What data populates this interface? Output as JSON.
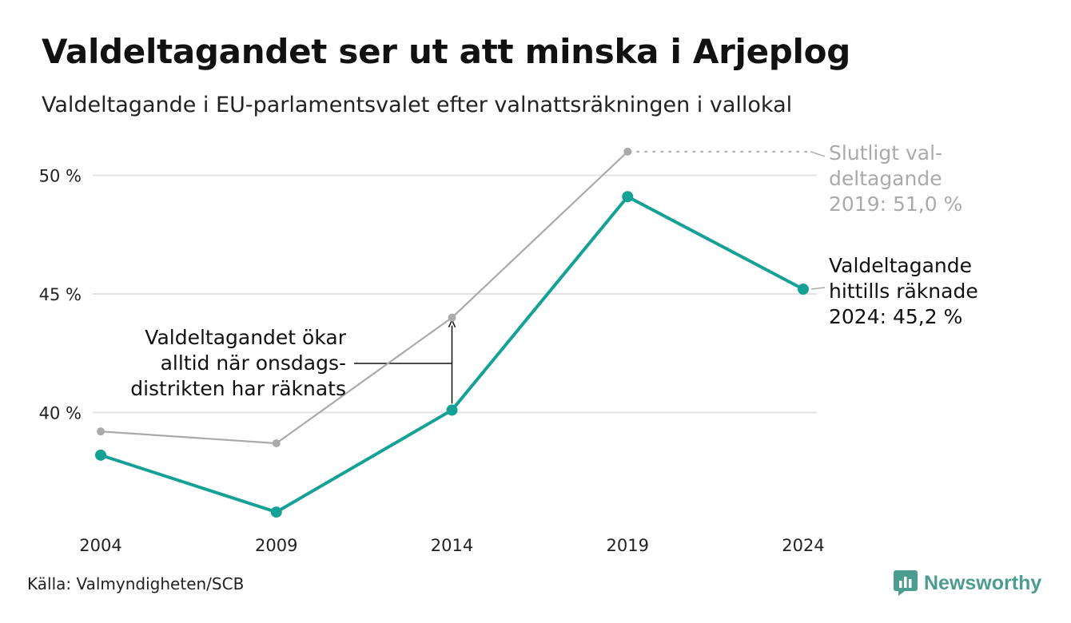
{
  "header": {
    "title": "Valdeltagandet ser ut att minska i Arjeplog",
    "subtitle": "Valdeltagande i EU-parlamentsvalet efter valnattsräkningen i vallokal"
  },
  "footer": {
    "source": "Källa: Valmyndigheten/SCB",
    "brand": "Newsworthy",
    "brand_icon": "newsworthy-logo-icon"
  },
  "chart_data": {
    "type": "line",
    "title": "Valdeltagandet ser ut att minska i Arjeplog",
    "subtitle": "Valdeltagande i EU-parlamentsvalet efter valnattsräkningen i vallokal",
    "x": [
      "2004",
      "2009",
      "2014",
      "2019",
      "2024"
    ],
    "ylim": [
      35.5,
      51.5
    ],
    "yticks": [
      40,
      45,
      50
    ],
    "ytick_labels": [
      "40 %",
      "45 %",
      "50 %"
    ],
    "grid": true,
    "series": [
      {
        "id": "final",
        "values": [
          39.2,
          38.7,
          44.0,
          51.0,
          null
        ],
        "color": "#aaaaaa"
      },
      {
        "id": "election-night",
        "values": [
          38.2,
          35.8,
          40.1,
          49.1,
          45.2
        ],
        "color": "#16a196"
      }
    ],
    "annotations": [
      {
        "id": "final-2019",
        "lines": [
          "Slutligt val-",
          "deltagande",
          "2019: 51,0 %"
        ],
        "color": "#aaaaaa"
      },
      {
        "id": "counted-2024",
        "lines": [
          "Valdeltagande",
          "hittills räknade",
          "2024: 45,2 %"
        ],
        "color": "#111111"
      },
      {
        "id": "wednesday-districts",
        "lines": [
          "Valdeltagandet ökar",
          "alltid när onsdags-",
          "distrikten har räknats"
        ],
        "color": "#111111"
      }
    ]
  }
}
